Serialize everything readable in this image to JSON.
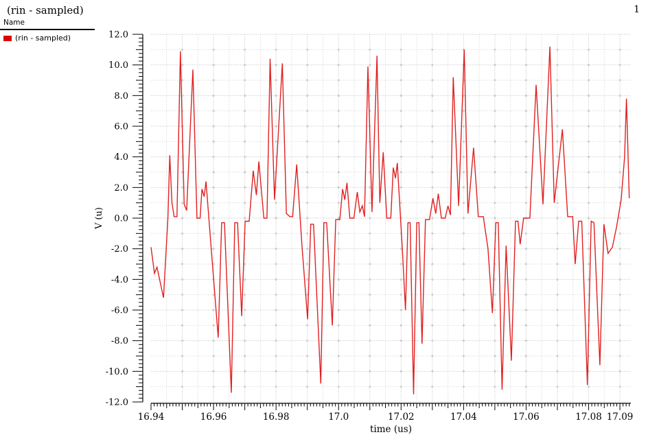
{
  "header": {
    "title": "(rin - sampled)",
    "page_number": "1"
  },
  "legend": {
    "header": "Name",
    "items": [
      {
        "label": "(rin - sampled)",
        "color": "#dd0000"
      }
    ]
  },
  "chart_data": {
    "type": "line",
    "title": "(rin - sampled)",
    "xlabel": "time (us)",
    "ylabel": "V (u)",
    "xlim": [
      16.94,
      17.0935
    ],
    "ylim": [
      -12.0,
      12.0
    ],
    "grid": {
      "style": "dotted",
      "x_minor_step": 0.005,
      "x_major_step": 0.01,
      "y_minor_step": 1.0,
      "y_major_step": 2.0,
      "minor_color": "#cfcfcf",
      "major_color": "#c2c2c2",
      "intersection_ring_color": "#bdbdbd"
    },
    "x_ticks": [
      {
        "label": "16.94",
        "t": 16.94
      },
      {
        "label": "16.96",
        "t": 16.96
      },
      {
        "label": "16.98",
        "t": 16.98
      },
      {
        "label": "17.0",
        "t": 17.0
      },
      {
        "label": "17.02",
        "t": 17.02
      },
      {
        "label": "17.04",
        "t": 17.04
      },
      {
        "label": "17.06",
        "t": 17.06
      },
      {
        "label": "17.08",
        "t": 17.08
      },
      {
        "label": "17.09",
        "t": 17.09
      }
    ],
    "y_tick_labels": [
      "12.0",
      "10.0",
      "8.0",
      "6.0",
      "4.0",
      "2.0",
      "0.0",
      "-2.0",
      "-4.0",
      "-6.0",
      "-8.0",
      "-10.0",
      "-12.0"
    ],
    "x_minor_tick_step": 0.001,
    "y_minor_tick_step": 0.25,
    "legend_position": "top-left",
    "series": [
      {
        "name": "(rin - sampled)",
        "color": "#e02020",
        "points": [
          [
            16.94,
            -1.9
          ],
          [
            16.9411,
            -3.6
          ],
          [
            16.9419,
            -3.2
          ],
          [
            16.944,
            -5.2
          ],
          [
            16.9448,
            -2.2
          ],
          [
            16.9454,
            0.0
          ],
          [
            16.946,
            4.1
          ],
          [
            16.9467,
            1.0
          ],
          [
            16.9474,
            0.1
          ],
          [
            16.9483,
            0.1
          ],
          [
            16.9494,
            10.9
          ],
          [
            16.9506,
            0.9
          ],
          [
            16.9514,
            0.5
          ],
          [
            16.9534,
            9.7
          ],
          [
            16.9547,
            0.0
          ],
          [
            16.9557,
            0.0
          ],
          [
            16.9563,
            1.9
          ],
          [
            16.957,
            1.4
          ],
          [
            16.9576,
            2.4
          ],
          [
            16.9593,
            -2.1
          ],
          [
            16.9615,
            -7.8
          ],
          [
            16.9626,
            -0.3
          ],
          [
            16.9635,
            -0.3
          ],
          [
            16.9657,
            -11.4
          ],
          [
            16.9668,
            -0.3
          ],
          [
            16.9677,
            -0.3
          ],
          [
            16.969,
            -6.4
          ],
          [
            16.9701,
            -0.2
          ],
          [
            16.9714,
            -0.2
          ],
          [
            16.9727,
            3.1
          ],
          [
            16.9737,
            1.5
          ],
          [
            16.9745,
            3.7
          ],
          [
            16.9754,
            1.6
          ],
          [
            16.9761,
            0.0
          ],
          [
            16.9771,
            0.0
          ],
          [
            16.9781,
            10.4
          ],
          [
            16.9795,
            1.2
          ],
          [
            16.982,
            10.1
          ],
          [
            16.9833,
            0.3
          ],
          [
            16.9844,
            0.1
          ],
          [
            16.9853,
            0.1
          ],
          [
            16.9866,
            3.5
          ],
          [
            16.9883,
            -1.8
          ],
          [
            16.9901,
            -6.6
          ],
          [
            16.9911,
            -0.4
          ],
          [
            16.992,
            -0.4
          ],
          [
            16.9943,
            -10.8
          ],
          [
            16.9953,
            -0.3
          ],
          [
            16.9962,
            -0.3
          ],
          [
            16.998,
            -7.0
          ],
          [
            16.9991,
            -0.1
          ],
          [
            17.0004,
            -0.1
          ],
          [
            17.0013,
            1.9
          ],
          [
            17.002,
            1.2
          ],
          [
            17.0027,
            2.3
          ],
          [
            17.0036,
            0.0
          ],
          [
            17.0049,
            0.0
          ],
          [
            17.006,
            1.7
          ],
          [
            17.0068,
            0.4
          ],
          [
            17.0076,
            0.8
          ],
          [
            17.0083,
            0.1
          ],
          [
            17.0094,
            9.9
          ],
          [
            17.0107,
            0.4
          ],
          [
            17.0123,
            10.6
          ],
          [
            17.0132,
            1.0
          ],
          [
            17.0143,
            4.3
          ],
          [
            17.0154,
            0.0
          ],
          [
            17.0167,
            0.0
          ],
          [
            17.0175,
            3.3
          ],
          [
            17.0182,
            2.6
          ],
          [
            17.0188,
            3.6
          ],
          [
            17.0204,
            -2.0
          ],
          [
            17.0214,
            -6.0
          ],
          [
            17.0222,
            -0.3
          ],
          [
            17.0229,
            -0.3
          ],
          [
            17.024,
            -11.5
          ],
          [
            17.025,
            -0.3
          ],
          [
            17.0257,
            -0.3
          ],
          [
            17.0267,
            -8.2
          ],
          [
            17.0278,
            -0.1
          ],
          [
            17.0291,
            -0.1
          ],
          [
            17.0302,
            1.3
          ],
          [
            17.0311,
            0.3
          ],
          [
            17.0319,
            1.6
          ],
          [
            17.0329,
            0.0
          ],
          [
            17.0341,
            0.0
          ],
          [
            17.035,
            0.8
          ],
          [
            17.0358,
            0.2
          ],
          [
            17.0367,
            9.2
          ],
          [
            17.0384,
            0.8
          ],
          [
            17.0402,
            11.0
          ],
          [
            17.0414,
            0.3
          ],
          [
            17.0432,
            4.6
          ],
          [
            17.0447,
            0.1
          ],
          [
            17.0463,
            0.1
          ],
          [
            17.0478,
            -2.0
          ],
          [
            17.0492,
            -6.2
          ],
          [
            17.0503,
            -0.3
          ],
          [
            17.0511,
            -0.3
          ],
          [
            17.0523,
            -11.2
          ],
          [
            17.0536,
            -1.8
          ],
          [
            17.0553,
            -9.3
          ],
          [
            17.0566,
            -0.2
          ],
          [
            17.0574,
            -0.2
          ],
          [
            17.0581,
            -1.7
          ],
          [
            17.0592,
            0.0
          ],
          [
            17.0612,
            0.0
          ],
          [
            17.0632,
            8.7
          ],
          [
            17.0654,
            0.9
          ],
          [
            17.0676,
            11.2
          ],
          [
            17.069,
            1.0
          ],
          [
            17.0716,
            5.8
          ],
          [
            17.0733,
            0.1
          ],
          [
            17.0749,
            0.1
          ],
          [
            17.0757,
            -3.0
          ],
          [
            17.0768,
            -0.2
          ],
          [
            17.0778,
            -0.2
          ],
          [
            17.0796,
            -10.9
          ],
          [
            17.0808,
            -0.2
          ],
          [
            17.0817,
            -0.3
          ],
          [
            17.0836,
            -9.6
          ],
          [
            17.0849,
            -0.4
          ],
          [
            17.0862,
            -2.3
          ],
          [
            17.0876,
            -1.9
          ],
          [
            17.0889,
            -0.6
          ],
          [
            17.0904,
            1.2
          ],
          [
            17.0915,
            4.0
          ],
          [
            17.0921,
            7.8
          ],
          [
            17.093,
            1.3
          ]
        ]
      }
    ]
  }
}
